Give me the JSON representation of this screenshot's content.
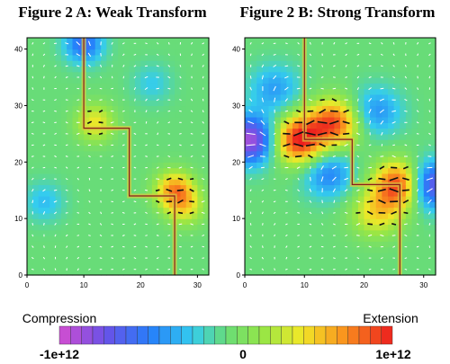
{
  "panels": [
    {
      "title": "Figure 2 A: Weak Transform"
    },
    {
      "title": "Figure 2 B: Strong Transform"
    }
  ],
  "colorbar": {
    "label_left": "Compression",
    "label_right": "Extension",
    "ticks": [
      "-1e+12",
      "0",
      "1e+12"
    ]
  },
  "chart_data": [
    {
      "type": "heatmap",
      "title": "Figure 2 A: Weak Transform",
      "xlim": [
        0,
        32
      ],
      "ylim": [
        0,
        42
      ],
      "xticks": [
        "0",
        "10",
        "20",
        "30"
      ],
      "yticks": [
        "0",
        "10",
        "20",
        "30",
        "40"
      ],
      "color_range": [
        -1000000000000.0,
        1000000000000.0
      ],
      "fault_trace": [
        [
          10,
          42
        ],
        [
          10,
          26
        ],
        [
          18,
          26
        ],
        [
          18,
          14
        ],
        [
          26,
          14
        ],
        [
          26,
          0
        ]
      ],
      "hotspots": [
        {
          "x": 12,
          "y": 27,
          "value": 0.45
        },
        {
          "x": 26,
          "y": 15,
          "value": 0.7
        },
        {
          "x": 28,
          "y": 12,
          "value": 0.35
        },
        {
          "x": 10,
          "y": 41,
          "value": -0.55
        },
        {
          "x": 3,
          "y": 13,
          "value": -0.25
        },
        {
          "x": 22,
          "y": 34,
          "value": -0.2
        }
      ]
    },
    {
      "type": "heatmap",
      "title": "Figure 2 B: Strong Transform",
      "xlim": [
        0,
        32
      ],
      "ylim": [
        0,
        42
      ],
      "xticks": [
        "0",
        "10",
        "20",
        "30"
      ],
      "yticks": [
        "0",
        "10",
        "20",
        "30",
        "40"
      ],
      "color_range": [
        -1000000000000.0,
        1000000000000.0
      ],
      "fault_trace": [
        [
          10,
          42
        ],
        [
          10,
          24
        ],
        [
          18,
          24
        ],
        [
          18,
          16
        ],
        [
          26,
          16
        ],
        [
          26,
          0
        ]
      ],
      "hotspots": [
        {
          "x": 9,
          "y": 24,
          "value": 1.0
        },
        {
          "x": 15,
          "y": 27,
          "value": 0.85
        },
        {
          "x": 26,
          "y": 16,
          "value": 1.0
        },
        {
          "x": 22,
          "y": 11,
          "value": 0.45
        },
        {
          "x": 1,
          "y": 24,
          "value": -0.9
        },
        {
          "x": 31,
          "y": 16,
          "value": -0.85
        },
        {
          "x": 14,
          "y": 18,
          "value": -0.45
        },
        {
          "x": 22,
          "y": 29,
          "value": -0.4
        },
        {
          "x": 5,
          "y": 33,
          "value": -0.35
        }
      ]
    }
  ]
}
